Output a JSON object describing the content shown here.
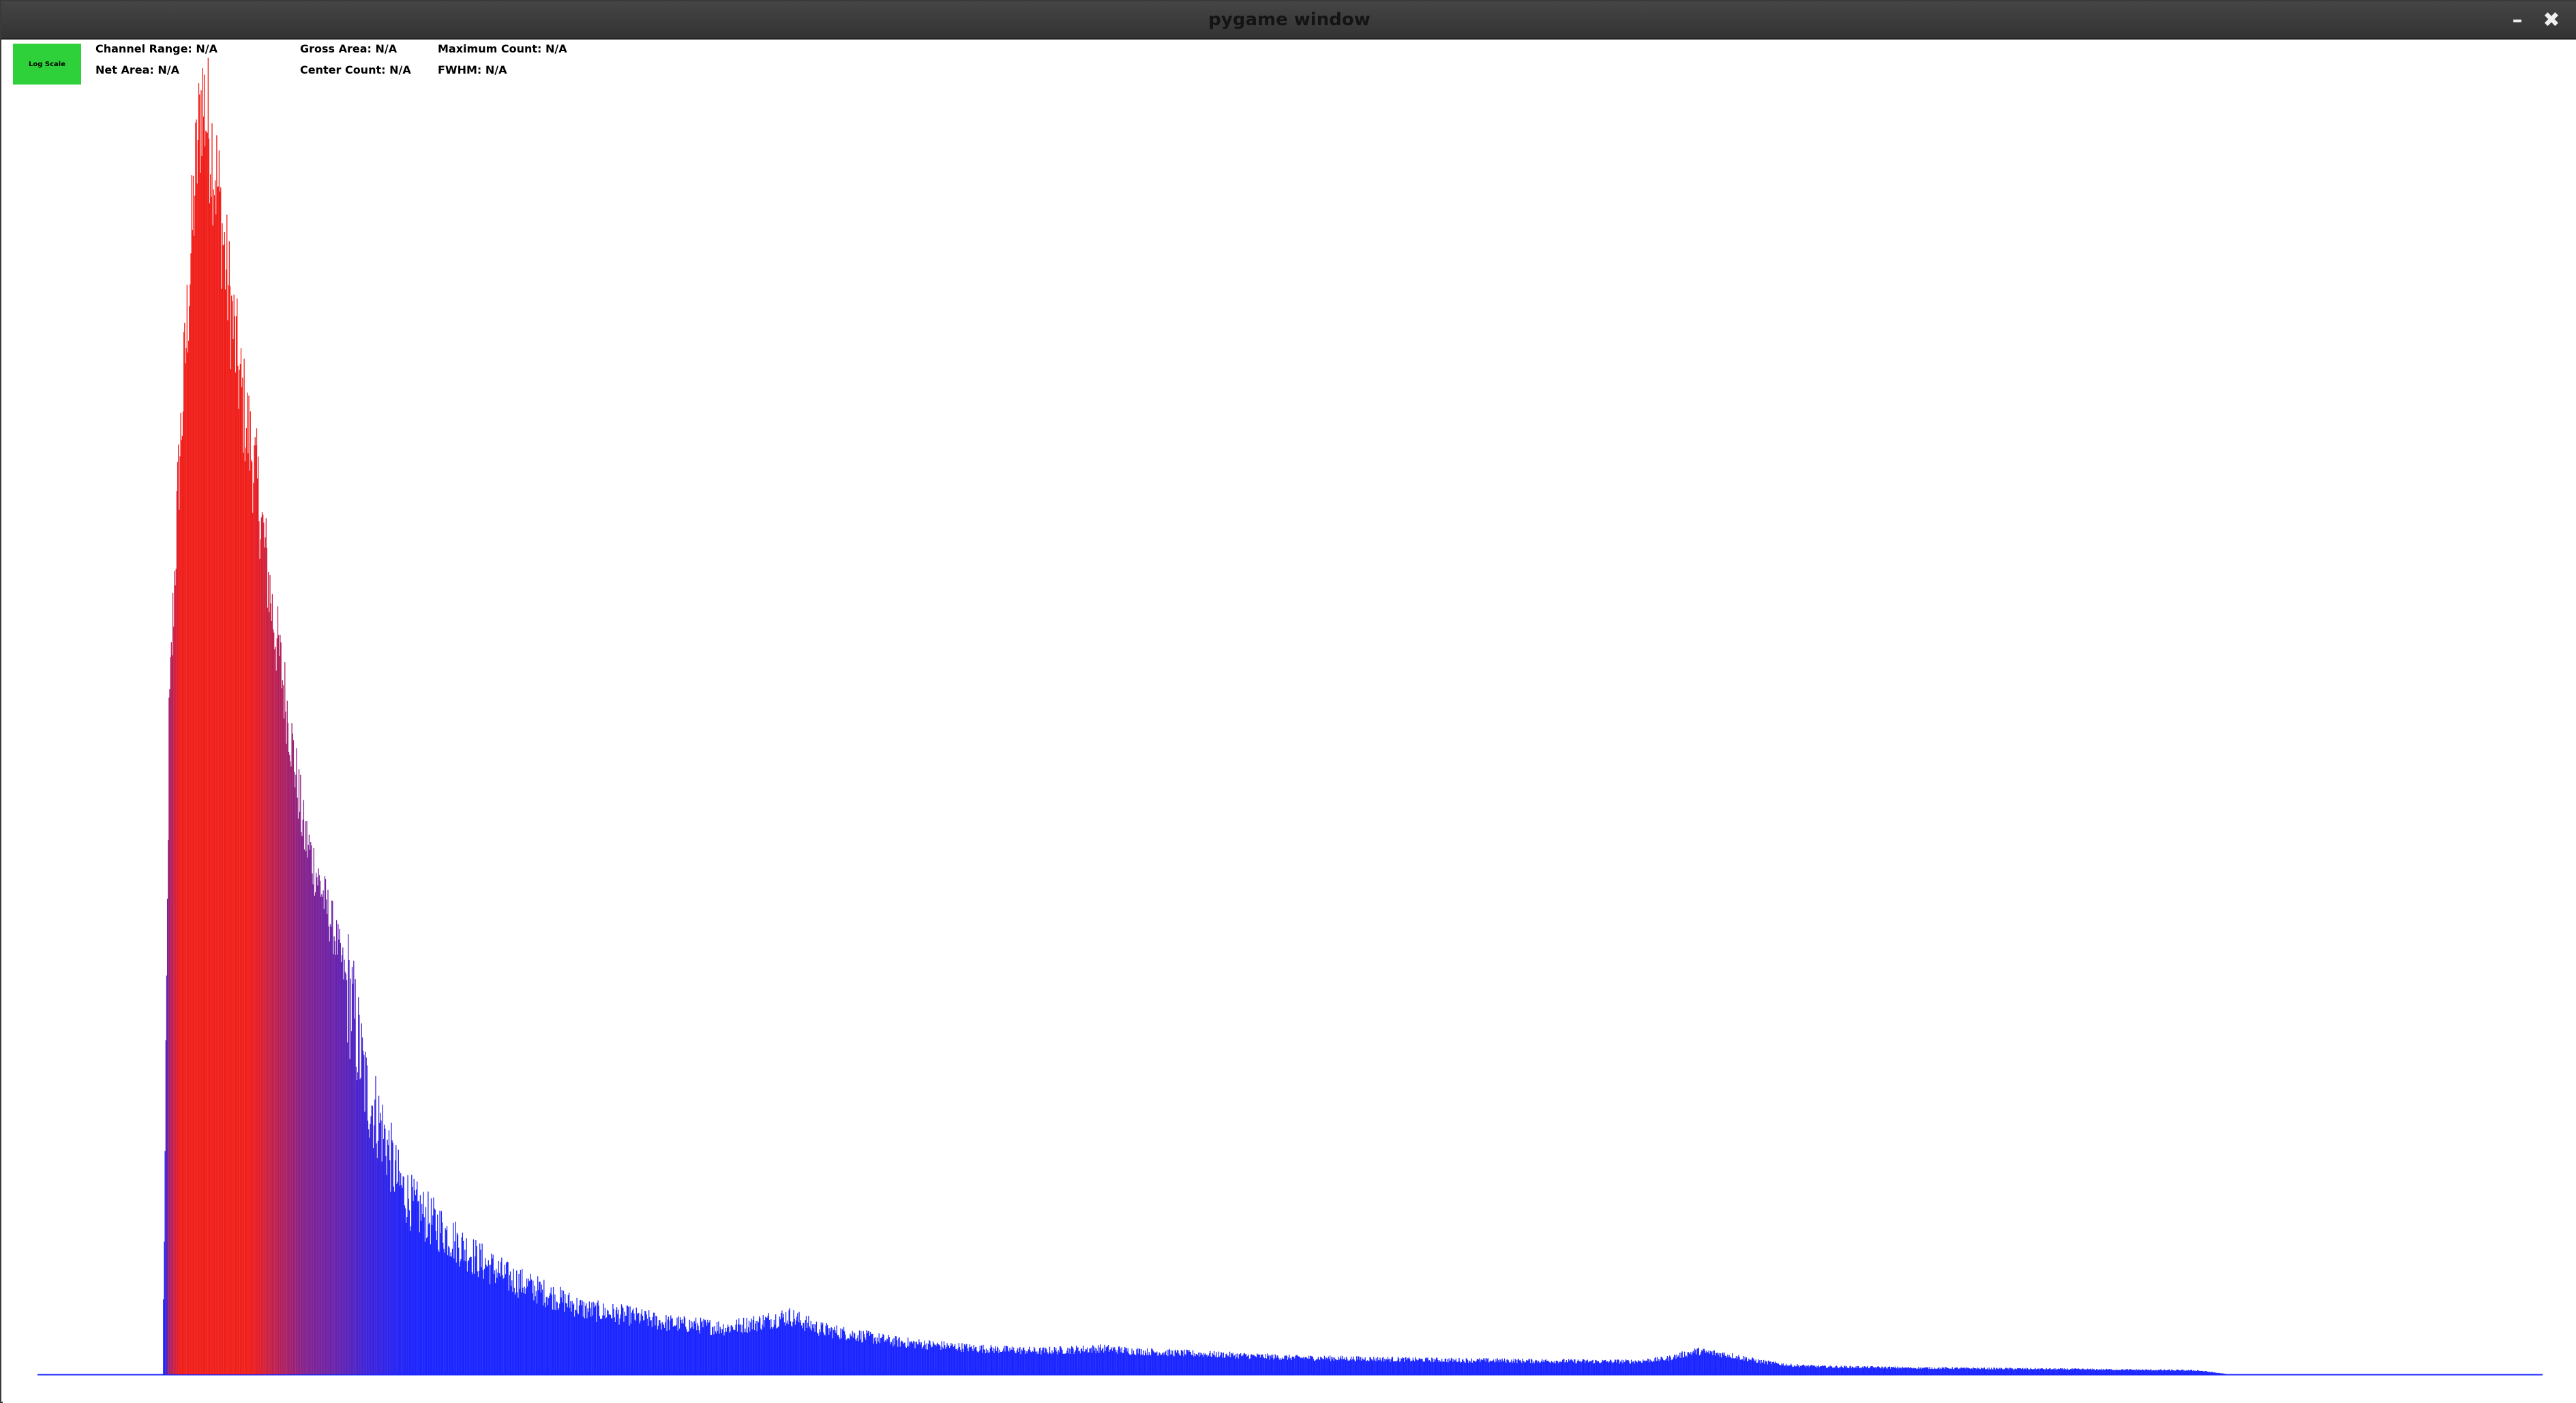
{
  "window": {
    "title": "pygame window",
    "minimize_icon": "minimize-icon",
    "close_icon": "close-icon",
    "minimize_glyph": "–",
    "close_glyph": "✖"
  },
  "toolbar": {
    "log_scale_label": "Log Scale",
    "log_scale_color": "#2fd13a"
  },
  "stats": {
    "channel_range": "Channel Range: N/A",
    "net_area": "Net Area: N/A",
    "gross_area": "Gross Area: N/A",
    "center_count": "Center Count: N/A",
    "maximum_count": "Maximum Count: N/A",
    "fwhm": "FWHM: N/A"
  },
  "colors": {
    "baseline": "#1a24ff",
    "low_intensity": "#1a24ff",
    "high_intensity": "#f01f1a",
    "background": "#ffffff"
  },
  "chart_data": {
    "type": "bar",
    "xlabel": "",
    "ylabel": "",
    "x_range": [
      0,
      1600
    ],
    "y_range": [
      0,
      1
    ],
    "grid": false,
    "legend": "none",
    "bar_color_scale": "blue (low) to red (high), by relative count",
    "envelope_x": [
      0,
      80,
      82,
      84,
      87,
      90,
      95,
      100,
      105,
      110,
      115,
      120,
      125,
      130,
      140,
      150,
      160,
      170,
      180,
      190,
      200,
      210,
      220,
      230,
      240,
      250,
      260,
      270,
      280,
      300,
      320,
      350,
      380,
      400,
      420,
      440,
      460,
      480,
      500,
      550,
      600,
      640,
      680,
      700,
      720,
      760,
      800,
      850,
      900,
      1000,
      1020,
      1040,
      1060,
      1080,
      1100,
      1120,
      1140,
      1200,
      1300,
      1380,
      1400,
      1600
    ],
    "envelope_y": [
      0,
      0,
      0.22,
      0.5,
      0.6,
      0.69,
      0.8,
      0.91,
      0.99,
      0.96,
      0.92,
      0.86,
      0.81,
      0.76,
      0.69,
      0.59,
      0.51,
      0.42,
      0.38,
      0.34,
      0.29,
      0.22,
      0.19,
      0.15,
      0.13,
      0.12,
      0.11,
      0.1,
      0.09,
      0.075,
      0.065,
      0.05,
      0.045,
      0.04,
      0.038,
      0.036,
      0.04,
      0.045,
      0.035,
      0.025,
      0.02,
      0.018,
      0.02,
      0.018,
      0.017,
      0.015,
      0.013,
      0.012,
      0.011,
      0.01,
      0.01,
      0.012,
      0.018,
      0.015,
      0.01,
      0.007,
      0.006,
      0.005,
      0.004,
      0.003,
      0,
      0
    ]
  }
}
